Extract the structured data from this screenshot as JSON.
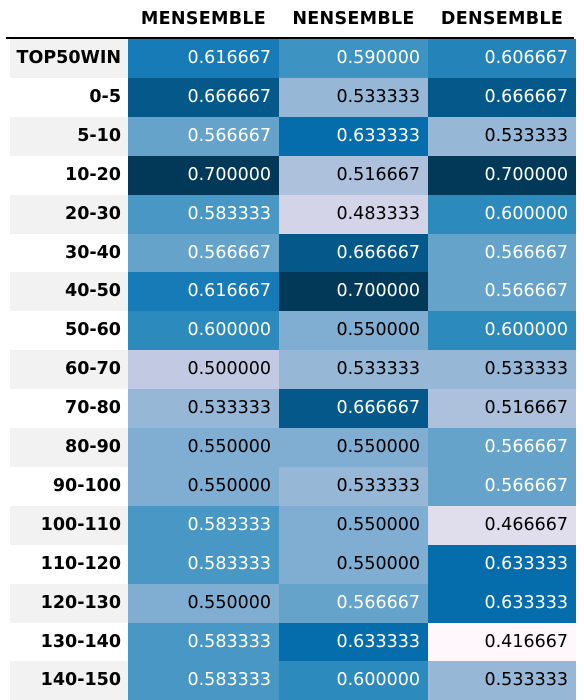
{
  "chart_data": {
    "type": "heatmap",
    "columns": [
      "MENSEMBLE",
      "NENSEMBLE",
      "DENSEMBLE"
    ],
    "rows": [
      "TOP50WIN",
      "0-5",
      "5-10",
      "10-20",
      "20-30",
      "30-40",
      "40-50",
      "50-60",
      "60-70",
      "70-80",
      "80-90",
      "90-100",
      "100-110",
      "110-120",
      "120-130",
      "130-140",
      "140-150"
    ],
    "value_labels": [
      [
        "0.616667",
        "0.590000",
        "0.606667"
      ],
      [
        "0.666667",
        "0.533333",
        "0.666667"
      ],
      [
        "0.566667",
        "0.633333",
        "0.533333"
      ],
      [
        "0.700000",
        "0.516667",
        "0.700000"
      ],
      [
        "0.583333",
        "0.483333",
        "0.600000"
      ],
      [
        "0.566667",
        "0.666667",
        "0.566667"
      ],
      [
        "0.616667",
        "0.700000",
        "0.566667"
      ],
      [
        "0.600000",
        "0.550000",
        "0.600000"
      ],
      [
        "0.500000",
        "0.533333",
        "0.533333"
      ],
      [
        "0.533333",
        "0.666667",
        "0.516667"
      ],
      [
        "0.550000",
        "0.550000",
        "0.566667"
      ],
      [
        "0.550000",
        "0.533333",
        "0.566667"
      ],
      [
        "0.583333",
        "0.550000",
        "0.466667"
      ],
      [
        "0.583333",
        "0.550000",
        "0.633333"
      ],
      [
        "0.550000",
        "0.566667",
        "0.633333"
      ],
      [
        "0.583333",
        "0.633333",
        "0.416667"
      ],
      [
        "0.583333",
        "0.600000",
        "0.533333"
      ]
    ],
    "colormap": "PuBu",
    "color_stops": [
      "#fff7fb",
      "#ece7f2",
      "#d0d1e6",
      "#a6bddb",
      "#74a9cf",
      "#3690c0",
      "#0570b0",
      "#045a8d",
      "#023858"
    ],
    "value_range": [
      0.416667,
      0.7
    ],
    "text_colors": {
      "dark_background": "#ffffff",
      "light_background": "#000000"
    },
    "row_stripe_colors": [
      "#f2f2f2",
      "#ffffff"
    ]
  }
}
